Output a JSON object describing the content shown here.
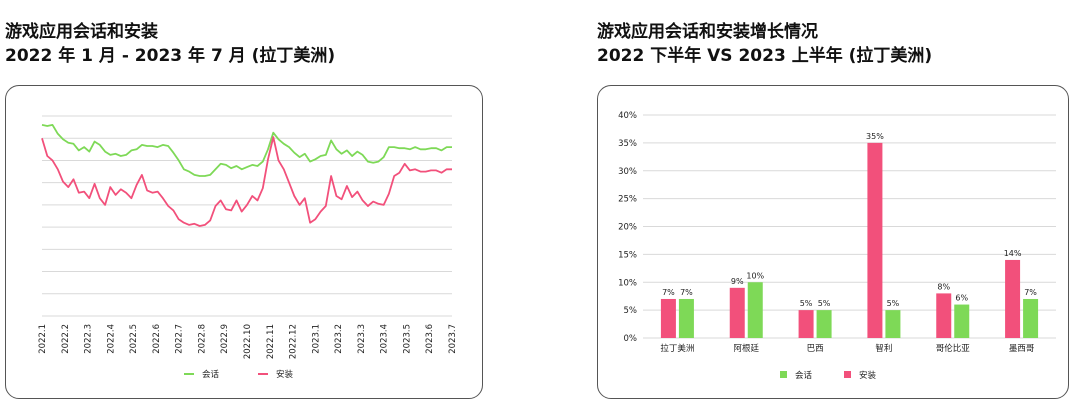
{
  "left_title": {
    "line1": "游戏应用会话和安装",
    "line2": "2022 年 1 月 - 2023 年 7 月 (拉丁美洲)"
  },
  "right_title": {
    "line1": "游戏应用会话和安装增长情况",
    "line2": "2022 下半年 VS 2023 上半年 (拉丁美洲)"
  },
  "colors": {
    "sessions": "#7ed957",
    "installs": "#f2507b",
    "grid": "#d9d9d9"
  },
  "chart_data": [
    {
      "type": "line",
      "title": "游戏应用会话和安装 2022 年 1 月 - 2023 年 7 月 (拉丁美洲)",
      "x_tick_labels": [
        "2022.1",
        "2022.2",
        "2022.3",
        "2022.4",
        "2022.5",
        "2022.6",
        "2022.7",
        "2022.8",
        "2022.9",
        "2022.10",
        "2022.11",
        "2022.12",
        "2023.1",
        "2023.2",
        "2023.3",
        "2023.4",
        "2023.5",
        "2023.6",
        "2023.7"
      ],
      "y_axis_labels": "none",
      "grid_lines": 9,
      "x_range": [
        0,
        78
      ],
      "y_range": [
        0,
        9
      ],
      "series": [
        {
          "name": "会话",
          "color": "#7ed957",
          "values": [
            8.6,
            8.55,
            8.6,
            8.2,
            7.95,
            7.8,
            7.75,
            7.45,
            7.6,
            7.4,
            7.85,
            7.7,
            7.4,
            7.25,
            7.3,
            7.2,
            7.25,
            7.45,
            7.5,
            7.7,
            7.65,
            7.65,
            7.6,
            7.7,
            7.65,
            7.35,
            7.0,
            6.6,
            6.5,
            6.35,
            6.3,
            6.3,
            6.35,
            6.6,
            6.85,
            6.8,
            6.65,
            6.75,
            6.6,
            6.7,
            6.8,
            6.75,
            6.95,
            7.5,
            8.25,
            7.95,
            7.75,
            7.6,
            7.35,
            7.15,
            7.3,
            6.95,
            7.05,
            7.2,
            7.25,
            7.9,
            7.5,
            7.3,
            7.45,
            7.2,
            7.4,
            7.25,
            6.95,
            6.9,
            6.95,
            7.15,
            7.6,
            7.6,
            7.55,
            7.55,
            7.5,
            7.6,
            7.5,
            7.5,
            7.55,
            7.55,
            7.45,
            7.6,
            7.6
          ]
        },
        {
          "name": "安装",
          "color": "#f2507b",
          "values": [
            8.0,
            7.2,
            7.0,
            6.6,
            6.05,
            5.8,
            6.15,
            5.55,
            5.6,
            5.3,
            5.95,
            5.3,
            5.0,
            5.8,
            5.45,
            5.7,
            5.55,
            5.3,
            5.9,
            6.35,
            5.65,
            5.55,
            5.6,
            5.3,
            4.95,
            4.75,
            4.35,
            4.2,
            4.1,
            4.15,
            4.05,
            4.1,
            4.3,
            4.95,
            5.2,
            4.8,
            4.75,
            5.2,
            4.7,
            5.0,
            5.4,
            5.2,
            5.75,
            7.05,
            8.05,
            7.0,
            6.6,
            6.0,
            5.4,
            5.0,
            5.3,
            4.2,
            4.35,
            4.7,
            4.95,
            6.3,
            5.4,
            5.25,
            5.85,
            5.35,
            5.6,
            5.2,
            4.95,
            5.15,
            5.05,
            5.0,
            5.5,
            6.3,
            6.45,
            6.85,
            6.55,
            6.6,
            6.5,
            6.5,
            6.55,
            6.55,
            6.45,
            6.6,
            6.6
          ]
        }
      ],
      "legend": {
        "position": "bottom",
        "items": [
          "会话",
          "安装"
        ]
      }
    },
    {
      "type": "bar",
      "title": "游戏应用会话和安装增长情况 2022 下半年 VS 2023 上半年 (拉丁美洲)",
      "categories": [
        "拉丁美洲",
        "阿根廷",
        "巴西",
        "智利",
        "哥伦比亚",
        "墨西哥"
      ],
      "y_tick_labels": [
        "0%",
        "5%",
        "10%",
        "15%",
        "20%",
        "25%",
        "30%",
        "35%",
        "40%"
      ],
      "ylim": [
        0,
        40
      ],
      "series": [
        {
          "name": "会话",
          "color": "#7ed957",
          "values": [
            7,
            10,
            5,
            5,
            6,
            7
          ],
          "labels": [
            "7%",
            "10%",
            "5%",
            "5%",
            "6%",
            "7%"
          ]
        },
        {
          "name": "安装",
          "color": "#f2507b",
          "values": [
            7,
            9,
            5,
            35,
            8,
            14
          ],
          "labels": [
            "7%",
            "9%",
            "5%",
            "35%",
            "8%",
            "14%"
          ]
        }
      ],
      "legend": {
        "position": "bottom",
        "items": [
          "会话",
          "安装"
        ]
      }
    }
  ]
}
